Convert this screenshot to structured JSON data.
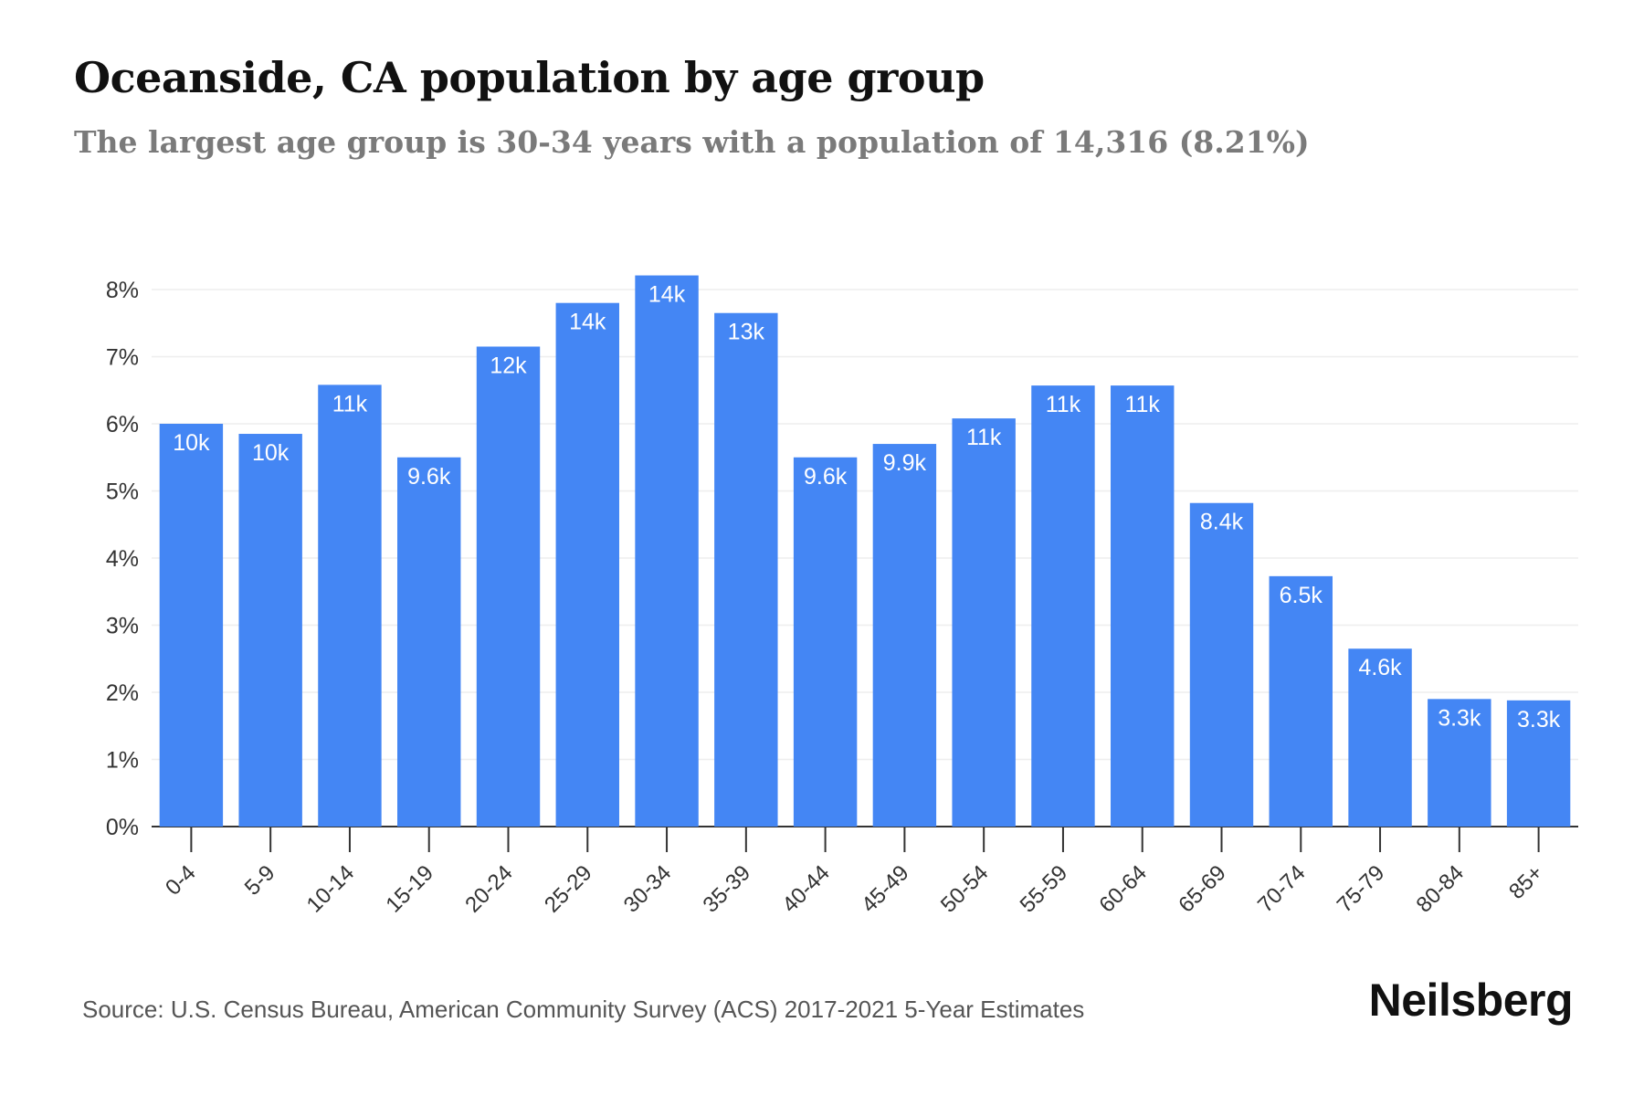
{
  "header": {
    "title": "Oceanside, CA population by age group",
    "subtitle": "The largest age group is 30-34 years with a population of 14,316 (8.21%)"
  },
  "footer": {
    "source": "Source: U.S. Census Bureau, American Community Survey (ACS) 2017-2021 5-Year Estimates",
    "brand": "Neilsberg"
  },
  "chart_data": {
    "type": "bar",
    "categories": [
      "0-4",
      "5-9",
      "10-14",
      "15-19",
      "20-24",
      "25-29",
      "30-34",
      "35-39",
      "40-44",
      "45-49",
      "50-54",
      "55-59",
      "60-64",
      "65-69",
      "70-74",
      "75-79",
      "80-84",
      "85+"
    ],
    "values": [
      6.0,
      5.85,
      6.58,
      5.5,
      7.15,
      7.8,
      8.21,
      7.65,
      5.5,
      5.7,
      6.08,
      6.57,
      6.57,
      4.82,
      3.73,
      2.65,
      1.9,
      1.88
    ],
    "data_labels": [
      "10k",
      "10k",
      "11k",
      "9.6k",
      "12k",
      "14k",
      "14k",
      "13k",
      "9.6k",
      "9.9k",
      "11k",
      "11k",
      "11k",
      "8.4k",
      "6.5k",
      "4.6k",
      "3.3k",
      "3.3k"
    ],
    "y_ticks": [
      "0%",
      "1%",
      "2%",
      "3%",
      "4%",
      "5%",
      "6%",
      "7%",
      "8%"
    ],
    "ylim": [
      0,
      8
    ],
    "grid": true,
    "bar_color": "#4486f4",
    "grid_color": "#eeeeee",
    "axis_color": "#333333"
  }
}
